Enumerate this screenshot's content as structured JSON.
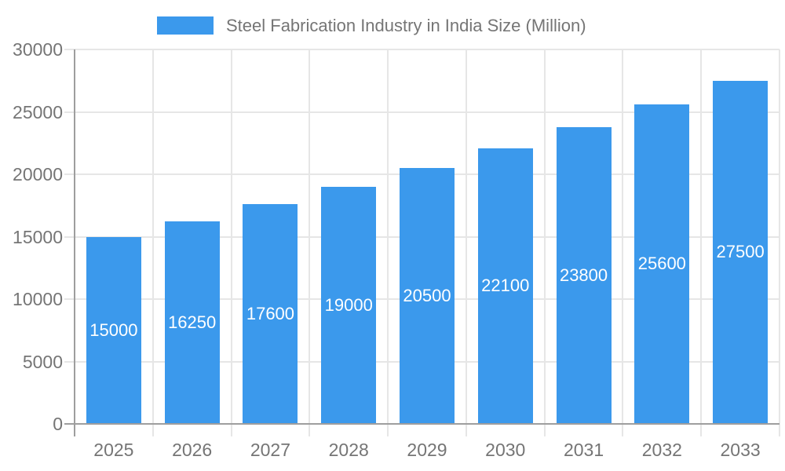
{
  "chart_data": {
    "type": "bar",
    "title": "Steel Fabrication Industry in India Size (Million)",
    "categories": [
      "2025",
      "2026",
      "2027",
      "2028",
      "2029",
      "2030",
      "2031",
      "2032",
      "2033"
    ],
    "values": [
      15000,
      16250,
      17600,
      19000,
      20500,
      22100,
      23800,
      25600,
      27500
    ],
    "bar_labels": [
      "15000",
      "16250",
      "17600",
      "19000",
      "20500",
      "22100",
      "23800",
      "25600",
      "27500"
    ],
    "xlabel": "",
    "ylabel": "",
    "ylim": [
      0,
      30000
    ],
    "yticks": [
      0,
      5000,
      10000,
      15000,
      20000,
      25000,
      30000
    ],
    "ytick_labels": [
      "0",
      "5000",
      "10000",
      "15000",
      "20000",
      "25000",
      "30000"
    ],
    "grid": true,
    "legend_position": "top",
    "colors": {
      "bar": "#3B99EC",
      "grid": "#e6e6e6",
      "axis": "#9e9e9e",
      "tick_text": "#757575",
      "legend_text": "#757575",
      "bar_label_text": "#ffffff",
      "background": "#ffffff"
    }
  }
}
